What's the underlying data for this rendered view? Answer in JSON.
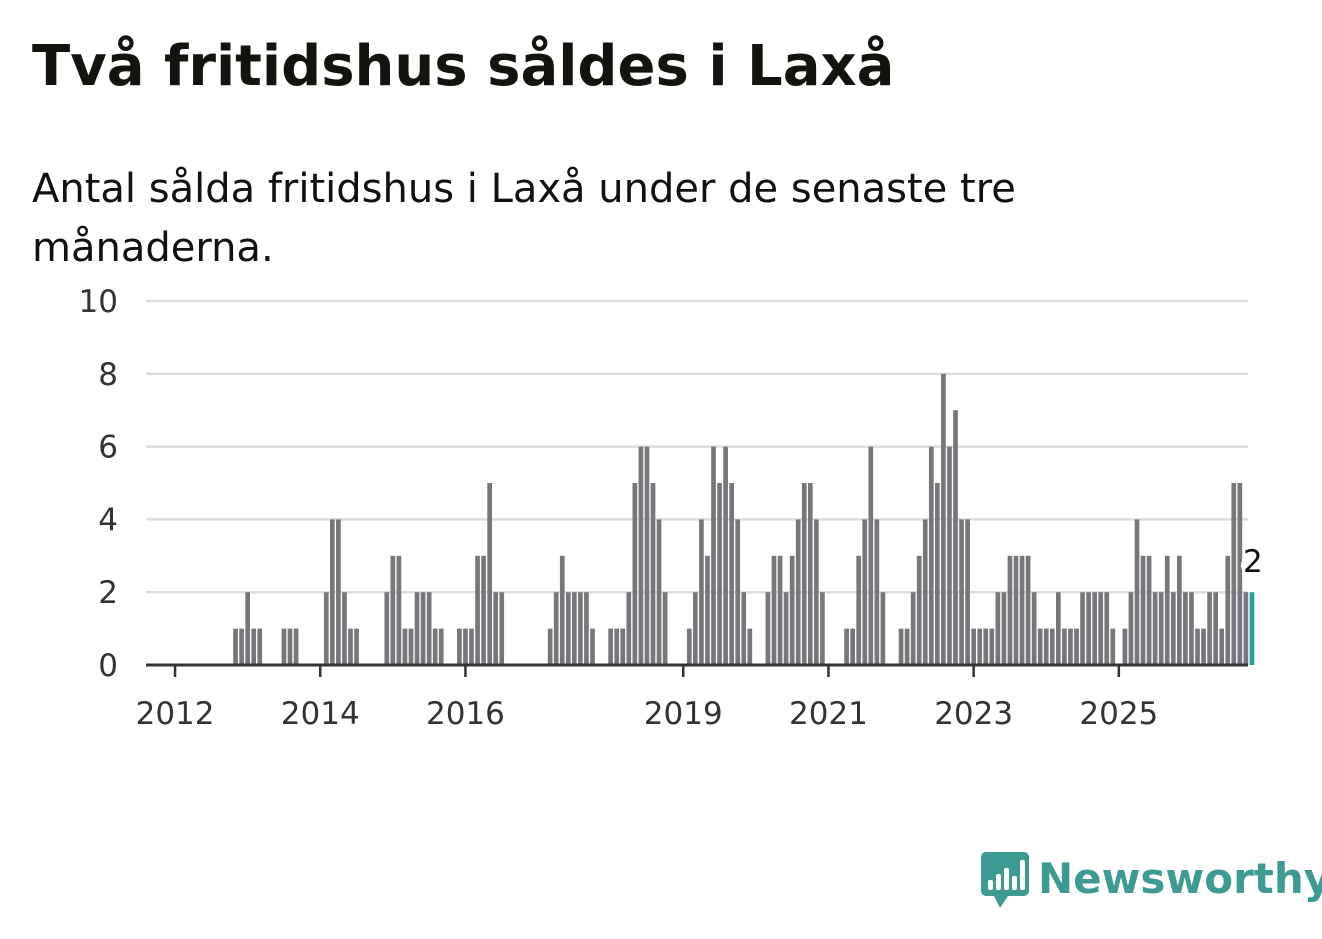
{
  "title": "Två fritidshus såldes i Laxå",
  "subtitle": "Antal sålda fritidshus i Laxå under de senaste tre månaderna.",
  "brand": {
    "name": "Newsworthy",
    "logo_icon": "newsworthy-logo-icon",
    "color": "#3d9b94"
  },
  "chart_data": {
    "type": "bar",
    "start": "2011-10",
    "interval": "month",
    "ylim": [
      0,
      10
    ],
    "y_ticks": [
      0,
      2,
      4,
      6,
      8,
      10
    ],
    "x_ticks": [
      {
        "label": "2012",
        "at": "2012-02"
      },
      {
        "label": "2014",
        "at": "2014-02"
      },
      {
        "label": "2016",
        "at": "2016-02"
      },
      {
        "label": "2019",
        "at": "2019-02"
      },
      {
        "label": "2021",
        "at": "2021-02"
      },
      {
        "label": "2023",
        "at": "2023-02"
      },
      {
        "label": "2025",
        "at": "2025-02"
      }
    ],
    "grid": true,
    "bar_color": "#77767b",
    "highlight_color": "#2a9d95",
    "values": [
      0,
      0,
      0,
      0,
      0,
      0,
      0,
      0,
      0,
      0,
      0,
      0,
      0,
      0,
      1,
      1,
      2,
      1,
      1,
      0,
      0,
      0,
      1,
      1,
      1,
      0,
      0,
      0,
      0,
      2,
      4,
      4,
      2,
      1,
      1,
      0,
      0,
      0,
      0,
      2,
      3,
      3,
      1,
      1,
      2,
      2,
      2,
      1,
      1,
      0,
      0,
      1,
      1,
      1,
      3,
      3,
      5,
      2,
      2,
      0,
      0,
      0,
      0,
      0,
      0,
      0,
      1,
      2,
      3,
      2,
      2,
      2,
      2,
      1,
      0,
      0,
      1,
      1,
      1,
      2,
      5,
      6,
      6,
      5,
      4,
      2,
      0,
      0,
      0,
      1,
      2,
      4,
      3,
      6,
      5,
      6,
      5,
      4,
      2,
      1,
      0,
      0,
      2,
      3,
      3,
      2,
      3,
      4,
      5,
      5,
      4,
      2,
      0,
      0,
      0,
      1,
      1,
      3,
      4,
      6,
      4,
      2,
      0,
      0,
      1,
      1,
      2,
      3,
      4,
      6,
      5,
      8,
      6,
      7,
      4,
      4,
      1,
      1,
      1,
      1,
      2,
      2,
      3,
      3,
      3,
      3,
      2,
      1,
      1,
      1,
      2,
      1,
      1,
      1,
      2,
      2,
      2,
      2,
      2,
      1,
      0,
      1,
      2,
      4,
      3,
      3,
      2,
      2,
      3,
      2,
      3,
      2,
      2,
      1,
      1,
      2,
      2,
      1,
      3,
      5,
      5,
      2,
      2
    ],
    "last_value_label": "2"
  }
}
